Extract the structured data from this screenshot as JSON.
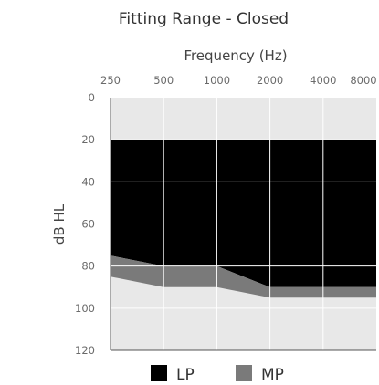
{
  "chart_data": {
    "type": "area",
    "title": "Fitting Range - Closed",
    "xlabel": "Frequency (Hz)",
    "ylabel": "dB HL",
    "x_scale": "log",
    "x_ticks": [
      "250",
      "500",
      "1000",
      "2000",
      "4000",
      "8000"
    ],
    "x_values": [
      250,
      500,
      1000,
      2000,
      4000,
      8000
    ],
    "y_ticks": [
      "0",
      "20",
      "40",
      "60",
      "80",
      "100",
      "120"
    ],
    "ylim": [
      0,
      120
    ],
    "y_inverted": true,
    "grid": true,
    "legend_position": "bottom",
    "series": [
      {
        "name": "LP",
        "color": "#000000",
        "upper": [
          [
            250,
            20
          ],
          [
            8000,
            20
          ]
        ],
        "lower": [
          [
            250,
            75
          ],
          [
            500,
            80
          ],
          [
            1000,
            80
          ],
          [
            2000,
            90
          ],
          [
            8000,
            90
          ]
        ]
      },
      {
        "name": "MP",
        "color": "#7a7a7a",
        "upper": [
          [
            250,
            75
          ],
          [
            500,
            80
          ],
          [
            1000,
            80
          ],
          [
            2000,
            90
          ],
          [
            8000,
            90
          ]
        ],
        "lower": [
          [
            250,
            85
          ],
          [
            500,
            90
          ],
          [
            1000,
            90
          ],
          [
            2000,
            95
          ],
          [
            8000,
            95
          ]
        ]
      }
    ]
  }
}
